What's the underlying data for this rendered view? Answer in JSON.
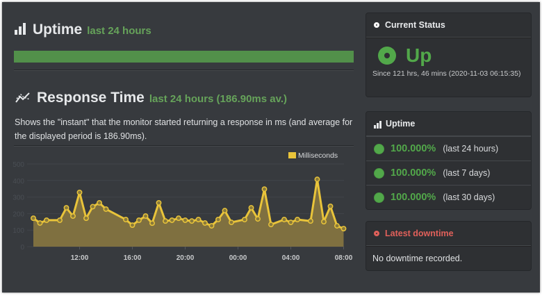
{
  "uptime_section": {
    "title": "Uptime",
    "subtitle": "last 24 hours",
    "bar_color": "#52904a",
    "icon": "bar-chart-icon"
  },
  "response_section": {
    "title": "Response Time",
    "subtitle": "last 24 hours (186.90ms av.)",
    "icon": "line-chart-icon",
    "description": "Shows the \"instant\" that the monitor started returning a response in ms (and average for the displayed period is 186.90ms)."
  },
  "chart_data": {
    "type": "area",
    "title": "",
    "xlabel": "",
    "ylabel": "",
    "ylim": [
      0,
      500
    ],
    "yticks": [
      0,
      100,
      200,
      300,
      400,
      500
    ],
    "xticks": [
      "12:00",
      "16:00",
      "20:00",
      "00:00",
      "04:00",
      "08:00"
    ],
    "legend": "Milliseconds",
    "legend_position": "top-right",
    "grid": true,
    "color": "#e9c43a",
    "x_hours": [
      8.5,
      9.0,
      9.5,
      10.5,
      11.0,
      11.5,
      12.0,
      12.5,
      13.0,
      13.5,
      14.0,
      15.5,
      16.0,
      16.5,
      17.0,
      17.5,
      18.0,
      18.5,
      19.0,
      19.5,
      20.0,
      20.5,
      21.0,
      21.5,
      22.0,
      22.5,
      23.0,
      23.5,
      24.5,
      25.0,
      25.5,
      26.0,
      26.5,
      27.5,
      28.0,
      28.5,
      29.5,
      30.0,
      30.5,
      31.0,
      31.5,
      32.0
    ],
    "values": [
      172,
      143,
      160,
      160,
      235,
      185,
      328,
      172,
      242,
      265,
      227,
      164,
      130,
      160,
      185,
      142,
      265,
      155,
      160,
      172,
      160,
      155,
      164,
      143,
      126,
      164,
      218,
      147,
      164,
      235,
      168,
      348,
      134,
      164,
      147,
      164,
      155,
      407,
      151,
      244,
      126,
      109
    ]
  },
  "current_status": {
    "header": "Current Status",
    "status": "Up",
    "since": "Since 121 hrs, 46 mins (2020-11-03 06:15:35)",
    "status_color": "#52a84a"
  },
  "uptime_panel": {
    "header": "Uptime",
    "items": [
      {
        "percent": "100.000%",
        "period": "(last 24 hours)"
      },
      {
        "percent": "100.000%",
        "period": "(last 7 days)"
      },
      {
        "percent": "100.000%",
        "period": "(last 30 days)"
      }
    ]
  },
  "latest_downtime": {
    "header": "Latest downtime",
    "message": "No downtime recorded.",
    "header_color": "#e0605a"
  }
}
